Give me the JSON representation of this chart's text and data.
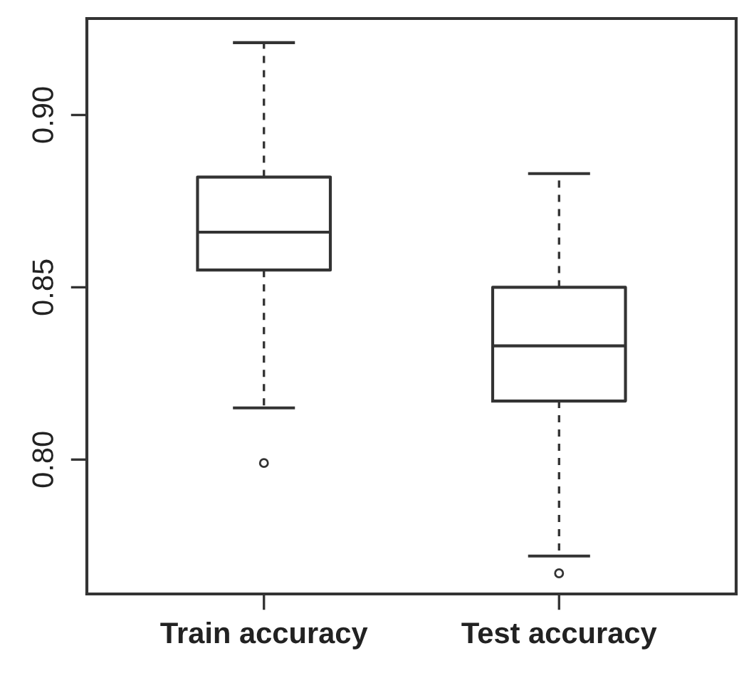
{
  "chart_data": {
    "type": "box",
    "categories": [
      "Train accuracy",
      "Test accuracy"
    ],
    "boxes": [
      {
        "low": 0.815,
        "q1": 0.855,
        "median": 0.866,
        "q3": 0.882,
        "high": 0.921,
        "outliers": [
          0.799
        ]
      },
      {
        "low": 0.772,
        "q1": 0.817,
        "median": 0.833,
        "q3": 0.85,
        "high": 0.883,
        "outliers": [
          0.767
        ]
      }
    ],
    "ylim": [
      0.761,
      0.928
    ],
    "yticks": [
      {
        "value": 0.8,
        "label": "0.80"
      },
      {
        "value": 0.85,
        "label": "0.85"
      },
      {
        "value": 0.9,
        "label": "0.90"
      }
    ],
    "grid": false,
    "legend": false
  }
}
